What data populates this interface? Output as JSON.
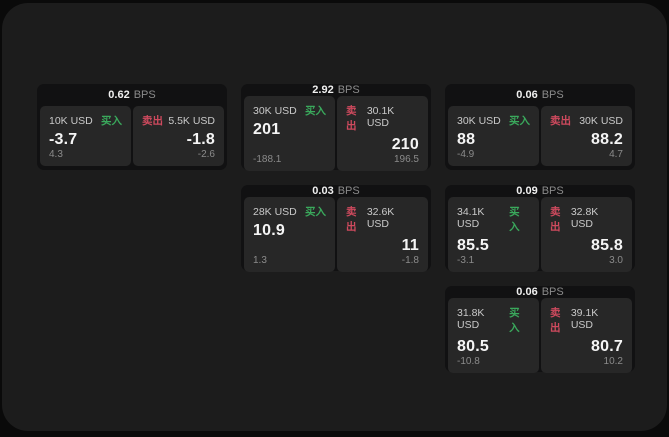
{
  "colors": {
    "buy_accent": "#3aa95c",
    "sell_accent": "#cf4a5e",
    "screen_bg": "#1c1c1c",
    "card_bg": "#111112",
    "panel_bg": "#272727"
  },
  "cards": [
    {
      "row": 1,
      "col": 1,
      "bps": "0.62",
      "unit": "BPS",
      "buy": {
        "size": "10K USD",
        "side": "买入",
        "value": "-3.7",
        "sub": "4.3"
      },
      "sell": {
        "side": "卖出",
        "size": "5.5K USD",
        "value": "-1.8",
        "sub": "-2.6"
      }
    },
    {
      "row": 1,
      "col": 2,
      "bps": "2.92",
      "unit": "BPS",
      "buy": {
        "size": "30K USD",
        "side": "买入",
        "value": "201",
        "sub": "-188.1"
      },
      "sell": {
        "side": "卖出",
        "size": "30.1K USD",
        "value": "210",
        "sub": "196.5"
      }
    },
    {
      "row": 1,
      "col": 3,
      "bps": "0.06",
      "unit": "BPS",
      "buy": {
        "size": "30K USD",
        "side": "买入",
        "value": "88",
        "sub": "-4.9"
      },
      "sell": {
        "side": "卖出",
        "size": "30K USD",
        "value": "88.2",
        "sub": "4.7"
      }
    },
    {
      "row": 2,
      "col": 2,
      "bps": "0.03",
      "unit": "BPS",
      "buy": {
        "size": "28K USD",
        "side": "买入",
        "value": "10.9",
        "sub": "1.3"
      },
      "sell": {
        "side": "卖出",
        "size": "32.6K USD",
        "value": "11",
        "sub": "-1.8"
      }
    },
    {
      "row": 2,
      "col": 3,
      "bps": "0.09",
      "unit": "BPS",
      "buy": {
        "size": "34.1K USD",
        "side": "买入",
        "value": "85.5",
        "sub": "-3.1"
      },
      "sell": {
        "side": "卖出",
        "size": "32.8K USD",
        "value": "85.8",
        "sub": "3.0"
      }
    },
    {
      "row": 3,
      "col": 3,
      "bps": "0.06",
      "unit": "BPS",
      "buy": {
        "size": "31.8K USD",
        "side": "买入",
        "value": "80.5",
        "sub": "-10.8"
      },
      "sell": {
        "side": "卖出",
        "size": "39.1K USD",
        "value": "80.7",
        "sub": "10.2"
      }
    }
  ]
}
